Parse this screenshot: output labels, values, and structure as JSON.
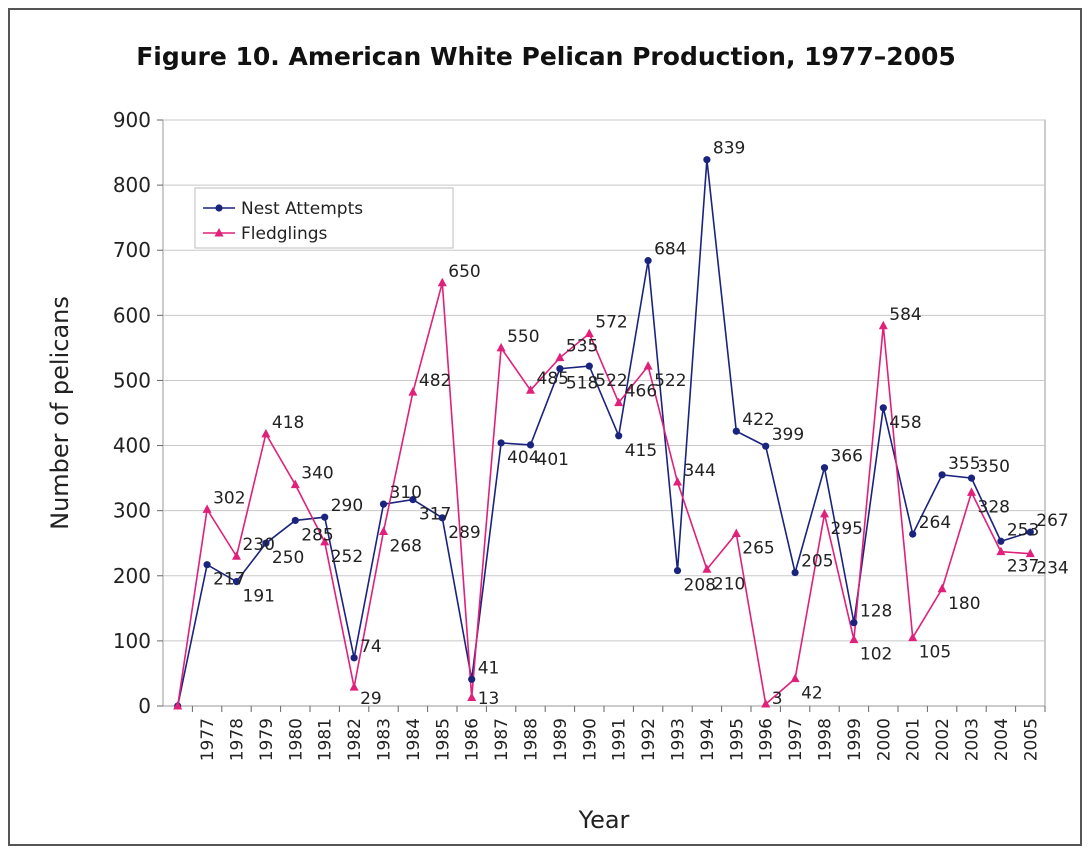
{
  "chart_data": {
    "type": "line",
    "title": "Figure 10. American White Pelican Production, 1977–2005",
    "xlabel": "Year",
    "ylabel": "Number of pelicans",
    "ylim": [
      0,
      900
    ],
    "yticks": [
      0,
      100,
      200,
      300,
      400,
      500,
      600,
      700,
      800,
      900
    ],
    "grid": true,
    "legend_position": "upper-left",
    "categories": [
      "",
      "1977",
      "1978",
      "1979",
      "1980",
      "1981",
      "1982",
      "1983",
      "1984",
      "1985",
      "1986",
      "1987",
      "1988",
      "1989",
      "1990",
      "1991",
      "1992",
      "1993",
      "1994",
      "1995",
      "1996",
      "1997",
      "1998",
      "1999",
      "2000",
      "2001",
      "2002",
      "2003",
      "2004",
      "2005"
    ],
    "series": [
      {
        "name": "Nest Attempts",
        "color": "#1a237e",
        "marker": "circle",
        "values": [
          0,
          217,
          191,
          250,
          285,
          290,
          74,
          310,
          317,
          289,
          41,
          404,
          401,
          518,
          522,
          415,
          684,
          208,
          839,
          422,
          399,
          205,
          366,
          128,
          458,
          264,
          355,
          350,
          253,
          267
        ],
        "labels": [
          "",
          "217",
          "191",
          "250",
          "285",
          "290",
          "74",
          "310",
          "317",
          "289",
          "41",
          "404",
          "401",
          "518",
          "522",
          "415",
          "684",
          "208",
          "839",
          "422",
          "399",
          "205",
          "366",
          "128",
          "458",
          "264",
          "355",
          "350",
          "253",
          "267"
        ]
      },
      {
        "name": "Fledglings",
        "color": "#e0207a",
        "marker": "triangle",
        "values": [
          0,
          302,
          230,
          418,
          340,
          252,
          29,
          268,
          482,
          650,
          13,
          550,
          485,
          535,
          572,
          466,
          522,
          344,
          210,
          265,
          3,
          42,
          295,
          102,
          584,
          105,
          180,
          328,
          237,
          234
        ],
        "labels": [
          "",
          "302",
          "230",
          "418",
          "340",
          "252",
          "29",
          "268",
          "482",
          "650",
          "13",
          "550",
          "485",
          "535",
          "572",
          "466",
          "522",
          "344",
          "210",
          "265",
          "3",
          "42",
          "295",
          "102",
          "584",
          "105",
          "180",
          "328",
          "237",
          "234"
        ]
      }
    ]
  }
}
